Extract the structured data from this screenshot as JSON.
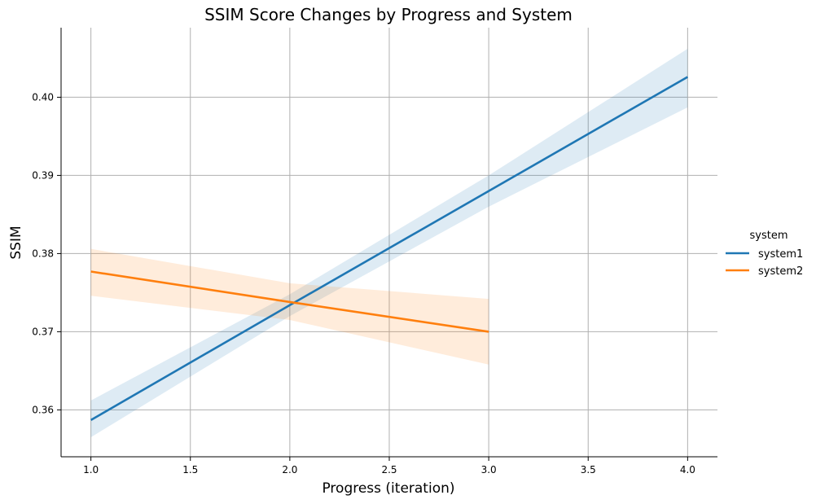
{
  "chart_data": {
    "type": "line",
    "title": "SSIM Score Changes by Progress and System",
    "xlabel": "Progress (iteration)",
    "ylabel": "SSIM",
    "xlim": [
      0.85,
      4.15
    ],
    "ylim": [
      0.354,
      0.4089
    ],
    "x_ticks": [
      1.0,
      1.5,
      2.0,
      2.5,
      3.0,
      3.5,
      4.0
    ],
    "x_tick_labels": [
      "1.0",
      "1.5",
      "2.0",
      "2.5",
      "3.0",
      "3.5",
      "4.0"
    ],
    "y_ticks": [
      0.36,
      0.37,
      0.38,
      0.39,
      0.4
    ],
    "y_tick_labels": [
      "0.36",
      "0.37",
      "0.38",
      "0.39",
      "0.40"
    ],
    "grid": true,
    "legend": {
      "title": "system",
      "placement": "right"
    },
    "series": [
      {
        "name": "system1",
        "color": "#1f77b4",
        "band_color": "#1f77b4",
        "x": [
          1.0,
          2.0,
          3.0,
          4.0
        ],
        "y": [
          0.3587,
          0.3734,
          0.388,
          0.4026
        ],
        "ci_lower": [
          0.3565,
          0.372,
          0.386,
          0.3987
        ],
        "ci_upper": [
          0.3612,
          0.3748,
          0.39,
          0.4062
        ]
      },
      {
        "name": "system2",
        "color": "#ff7f0e",
        "band_color": "#ff7f0e",
        "x": [
          1.0,
          2.0,
          3.0
        ],
        "y": [
          0.3777,
          0.3738,
          0.37
        ],
        "ci_lower": [
          0.3746,
          0.3715,
          0.3658
        ],
        "ci_upper": [
          0.3806,
          0.3762,
          0.3742
        ]
      }
    ]
  }
}
